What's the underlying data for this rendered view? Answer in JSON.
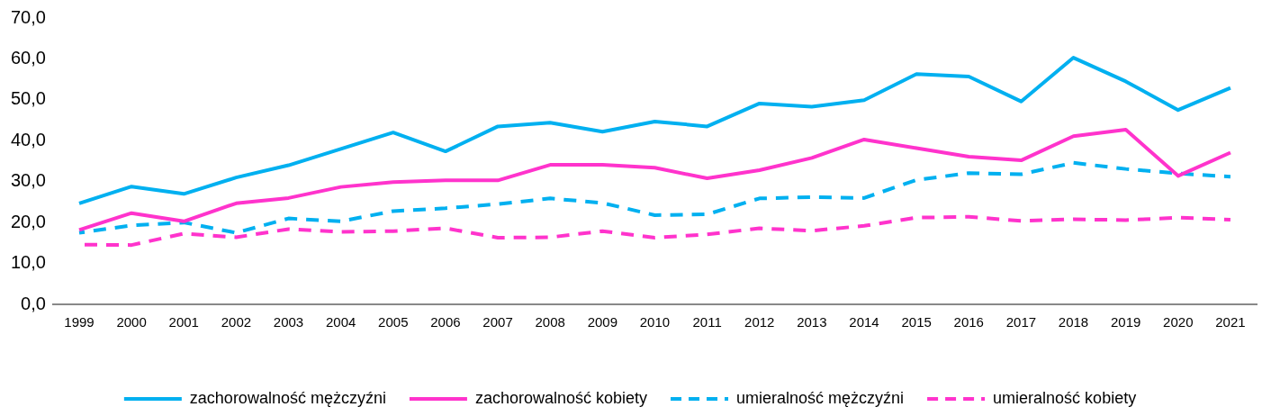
{
  "chart_data": {
    "type": "line",
    "categories": [
      "1999",
      "2000",
      "2001",
      "2002",
      "2003",
      "2004",
      "2005",
      "2006",
      "2007",
      "2008",
      "2009",
      "2010",
      "2011",
      "2012",
      "2013",
      "2014",
      "2015",
      "2016",
      "2017",
      "2018",
      "2019",
      "2020",
      "2021"
    ],
    "series": [
      {
        "name": "zachorowalność mężczyźni",
        "color": "#00b0f0",
        "line_style": "solid",
        "values": [
          24.7,
          28.8,
          27.0,
          31.0,
          34.0,
          38.0,
          42.0,
          37.4,
          43.5,
          44.4,
          42.2,
          44.7,
          43.5,
          49.1,
          48.3,
          49.9,
          56.3,
          55.7,
          49.6,
          60.3,
          54.5,
          47.5,
          52.9
        ]
      },
      {
        "name": "zachorowalność kobiety",
        "color": "#ff33cc",
        "line_style": "solid",
        "values": [
          18.2,
          22.3,
          20.3,
          24.7,
          26.0,
          28.7,
          29.9,
          30.3,
          30.3,
          34.1,
          34.1,
          33.4,
          30.8,
          32.8,
          35.8,
          40.3,
          38.2,
          36.1,
          35.2,
          41.1,
          42.7,
          31.4,
          37.1
        ]
      },
      {
        "name": "umieralność mężczyźni",
        "color": "#00b0f0",
        "line_style": "dashed",
        "values": [
          17.5,
          19.3,
          20.0,
          17.5,
          21.0,
          20.3,
          22.8,
          23.5,
          24.5,
          25.9,
          24.8,
          21.8,
          22.0,
          25.9,
          26.2,
          26.0,
          30.4,
          32.1,
          31.8,
          34.6,
          33.1,
          32.0,
          31.2
        ]
      },
      {
        "name": "umieralność kobiety",
        "color": "#ff33cc",
        "line_style": "dashed",
        "values": [
          14.6,
          14.5,
          17.3,
          16.4,
          18.4,
          17.7,
          17.9,
          18.6,
          16.3,
          16.4,
          17.9,
          16.3,
          17.1,
          18.6,
          18.0,
          19.2,
          21.2,
          21.4,
          20.4,
          20.8,
          20.6,
          21.2,
          20.7
        ]
      }
    ],
    "ylim": [
      0,
      70
    ],
    "yticks": [
      {
        "value": 0,
        "label": "0,0"
      },
      {
        "value": 10,
        "label": "10,0"
      },
      {
        "value": 20,
        "label": "20,0"
      },
      {
        "value": 30,
        "label": "30,0"
      },
      {
        "value": 40,
        "label": "40,0"
      },
      {
        "value": 50,
        "label": "50,0"
      },
      {
        "value": 60,
        "label": "60,0"
      },
      {
        "value": 70,
        "label": "70,0"
      }
    ],
    "grid": false,
    "legend": "bottom",
    "marker": "none"
  }
}
